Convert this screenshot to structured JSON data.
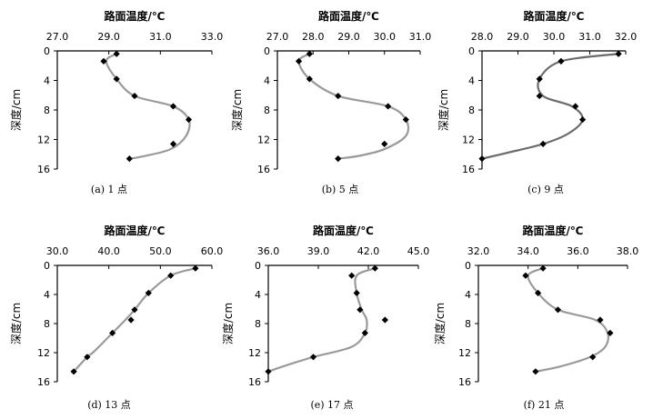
{
  "figure": {
    "xlabel": "路面温度/℃",
    "ylabel": "深度/cm"
  },
  "chart_data": [
    {
      "type": "scatter",
      "caption": "(a) 1 点",
      "xlabel": "路面温度/℃",
      "ylabel": "深度/cm",
      "xlim": [
        27.0,
        33.0
      ],
      "xticks": [
        "27.0",
        "29.0",
        "31.0",
        "33.0"
      ],
      "ylim": [
        0,
        16
      ],
      "yticks": [
        "0",
        "4",
        "8",
        "12",
        "16"
      ],
      "y_inverted": true,
      "points": {
        "x": [
          29.3,
          28.8,
          29.3,
          30.0,
          31.5,
          32.1,
          31.5,
          29.8
        ],
        "y": [
          0.4,
          1.4,
          3.8,
          6.1,
          7.5,
          9.3,
          12.6,
          14.6
        ]
      },
      "fit_curve": {
        "x": [
          29.3,
          28.9,
          29.3,
          30.0,
          31.5,
          32.1,
          32.0,
          31.4,
          30.3,
          29.8
        ],
        "y": [
          0.4,
          1.4,
          3.8,
          6.1,
          7.5,
          9.3,
          11.5,
          13.3,
          14.3,
          14.6
        ]
      }
    },
    {
      "type": "scatter",
      "caption": "(b) 5 点",
      "xlabel": "路面温度/℃",
      "ylabel": "深度/cm",
      "xlim": [
        27.0,
        31.0
      ],
      "xticks": [
        "27.0",
        "28.0",
        "29.0",
        "30.0",
        "31.0"
      ],
      "ylim": [
        0,
        16
      ],
      "yticks": [
        "0",
        "4",
        "8",
        "12",
        "16"
      ],
      "y_inverted": true,
      "points": {
        "x": [
          27.9,
          27.6,
          27.9,
          28.7,
          30.1,
          30.6,
          30.0,
          28.7
        ],
        "y": [
          0.4,
          1.4,
          3.8,
          6.1,
          7.5,
          9.3,
          12.6,
          14.6
        ]
      },
      "fit_curve": {
        "x": [
          27.9,
          27.6,
          27.9,
          28.7,
          30.1,
          30.6,
          30.6,
          30.0,
          29.3,
          28.7
        ],
        "y": [
          0.4,
          1.4,
          3.8,
          6.1,
          7.5,
          9.3,
          11.5,
          13.3,
          14.2,
          14.6
        ]
      }
    },
    {
      "type": "scatter",
      "caption": "(c) 9 点",
      "xlabel": "路面温度/℃",
      "ylabel": "深度/cm",
      "xlim": [
        28.0,
        32.0
      ],
      "xticks": [
        "28.0",
        "29.0",
        "30.0",
        "31.0",
        "32.0"
      ],
      "ylim": [
        0,
        16
      ],
      "yticks": [
        "0",
        "4",
        "8",
        "12",
        "16"
      ],
      "y_inverted": true,
      "points": {
        "x": [
          31.8,
          30.2,
          29.6,
          29.6,
          30.6,
          30.8,
          29.7,
          28.0
        ],
        "y": [
          0.4,
          1.4,
          3.8,
          6.1,
          7.5,
          9.3,
          12.6,
          14.6
        ]
      },
      "fit_curve": {
        "x": [
          31.8,
          30.2,
          29.6,
          29.7,
          30.5,
          30.8,
          30.4,
          29.7,
          28.7,
          28.0
        ],
        "y": [
          0.4,
          1.4,
          3.8,
          6.1,
          7.5,
          9.3,
          11.2,
          12.6,
          13.8,
          14.6
        ]
      }
    },
    {
      "type": "scatter",
      "caption": "(d) 13 点",
      "xlabel": "路面温度/℃",
      "ylabel": "深度/cm",
      "xlim": [
        30.0,
        60.0
      ],
      "xticks": [
        "30.0",
        "40.0",
        "50.0",
        "60.0"
      ],
      "ylim": [
        0,
        16
      ],
      "yticks": [
        "0",
        "4",
        "8",
        "12",
        "16"
      ],
      "y_inverted": true,
      "points": {
        "x": [
          56.8,
          52.0,
          47.7,
          45.0,
          44.3,
          40.7,
          35.8,
          33.2
        ],
        "y": [
          0.4,
          1.4,
          3.8,
          6.1,
          7.5,
          9.3,
          12.6,
          14.6
        ]
      },
      "fit_curve": {
        "x": [
          56.8,
          52.0,
          47.7,
          45.0,
          43.2,
          40.7,
          37.2,
          35.8,
          33.2
        ],
        "y": [
          0.4,
          1.4,
          3.8,
          6.1,
          7.5,
          9.3,
          11.8,
          12.6,
          14.6
        ]
      }
    },
    {
      "type": "scatter",
      "caption": "(e) 17 点",
      "xlabel": "路面温度/℃",
      "ylabel": "深度/cm",
      "xlim": [
        36.0,
        45.0
      ],
      "xticks": [
        "36.0",
        "39.0",
        "42.0",
        "45.0"
      ],
      "ylim": [
        0,
        16
      ],
      "yticks": [
        "0",
        "4",
        "8",
        "12",
        "16"
      ],
      "y_inverted": true,
      "points": {
        "x": [
          42.4,
          41.0,
          41.3,
          41.5,
          43.0,
          41.8,
          38.7,
          36.0
        ],
        "y": [
          0.4,
          1.4,
          3.8,
          6.1,
          7.5,
          9.3,
          12.6,
          14.6
        ]
      },
      "fit_curve": {
        "x": [
          42.4,
          41.3,
          41.3,
          41.6,
          41.9,
          41.8,
          41.0,
          38.7,
          37.0,
          36.0
        ],
        "y": [
          0.4,
          1.4,
          3.8,
          6.1,
          7.5,
          9.3,
          11.2,
          12.6,
          13.8,
          14.6
        ]
      }
    },
    {
      "type": "scatter",
      "caption": "(f) 21 点",
      "xlabel": "路面温度/℃",
      "ylabel": "深度/cm",
      "xlim": [
        32.0,
        38.0
      ],
      "xticks": [
        "32.0",
        "34.0",
        "36.0",
        "38.0"
      ],
      "ylim": [
        0,
        16
      ],
      "yticks": [
        "0",
        "4",
        "8",
        "12",
        "16"
      ],
      "y_inverted": true,
      "points": {
        "x": [
          34.6,
          33.9,
          34.4,
          35.2,
          36.9,
          37.3,
          36.6,
          34.3
        ],
        "y": [
          0.4,
          1.4,
          3.8,
          6.1,
          7.5,
          9.3,
          12.6,
          14.6
        ]
      },
      "fit_curve": {
        "x": [
          34.6,
          34.0,
          34.4,
          35.2,
          36.7,
          37.2,
          37.1,
          36.5,
          35.3,
          34.3
        ],
        "y": [
          0.4,
          1.4,
          3.8,
          6.1,
          7.5,
          9.3,
          11.2,
          12.6,
          13.9,
          14.6
        ]
      }
    }
  ]
}
